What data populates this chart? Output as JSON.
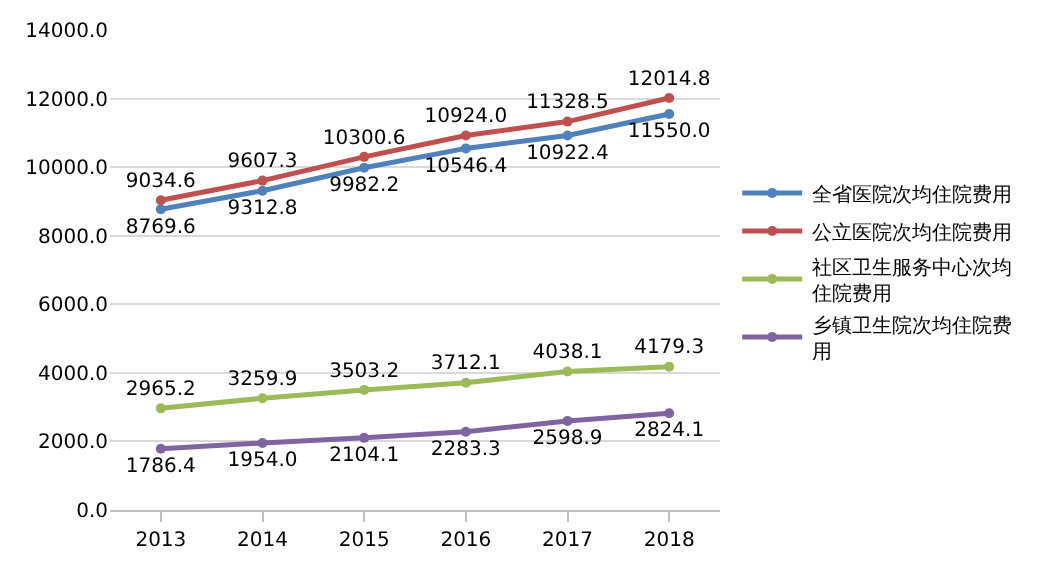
{
  "chart_data": {
    "type": "line",
    "categories": [
      "2013",
      "2014",
      "2015",
      "2016",
      "2017",
      "2018"
    ],
    "series": [
      {
        "name": "全省医院次均住院费用",
        "color": "#4f81bd",
        "values": [
          8769.6,
          9312.8,
          9982.2,
          10546.4,
          10922.4,
          11550.0
        ],
        "value_labels": [
          "8769.6",
          "9312.8",
          "9982.2",
          "10546.4",
          "10922.4",
          "11550.0"
        ]
      },
      {
        "name": "公立医院次均住院费用",
        "color": "#c0504d",
        "values": [
          9034.6,
          9607.3,
          10300.6,
          10924.0,
          11328.5,
          12014.8
        ],
        "value_labels": [
          "9034.6",
          "9607.3",
          "10300.6",
          "10924.0",
          "11328.5",
          "12014.8"
        ]
      },
      {
        "name": "社区卫生服务中心次均住院费用",
        "color": "#9bbb59",
        "values": [
          2965.2,
          3259.9,
          3503.2,
          3712.1,
          4038.1,
          4179.3
        ],
        "value_labels": [
          "2965.2",
          "3259.9",
          "3503.2",
          "3712.1",
          "4038.1",
          "4179.3"
        ]
      },
      {
        "name": "乡镇卫生院次均住院费用",
        "color": "#8064a2",
        "values": [
          1786.4,
          1954.0,
          2104.1,
          2283.3,
          2598.9,
          2824.1
        ],
        "value_labels": [
          "1786.4",
          "1954.0",
          "2104.1",
          "2283.3",
          "2598.9",
          "2824.1"
        ]
      }
    ],
    "ylim": [
      0,
      14000
    ],
    "yticks": [
      {
        "value": 0,
        "label": "0.0"
      },
      {
        "value": 2000,
        "label": "2000.0"
      },
      {
        "value": 4000,
        "label": "4000.0"
      },
      {
        "value": 6000,
        "label": "6000.0"
      },
      {
        "value": 8000,
        "label": "8000.0"
      },
      {
        "value": 10000,
        "label": "10000.0"
      },
      {
        "value": 12000,
        "label": "12000.0"
      },
      {
        "value": 14000,
        "label": "14000.0"
      }
    ],
    "grid": "y",
    "legend": "right",
    "marker": "circle",
    "line_style": "solid"
  }
}
